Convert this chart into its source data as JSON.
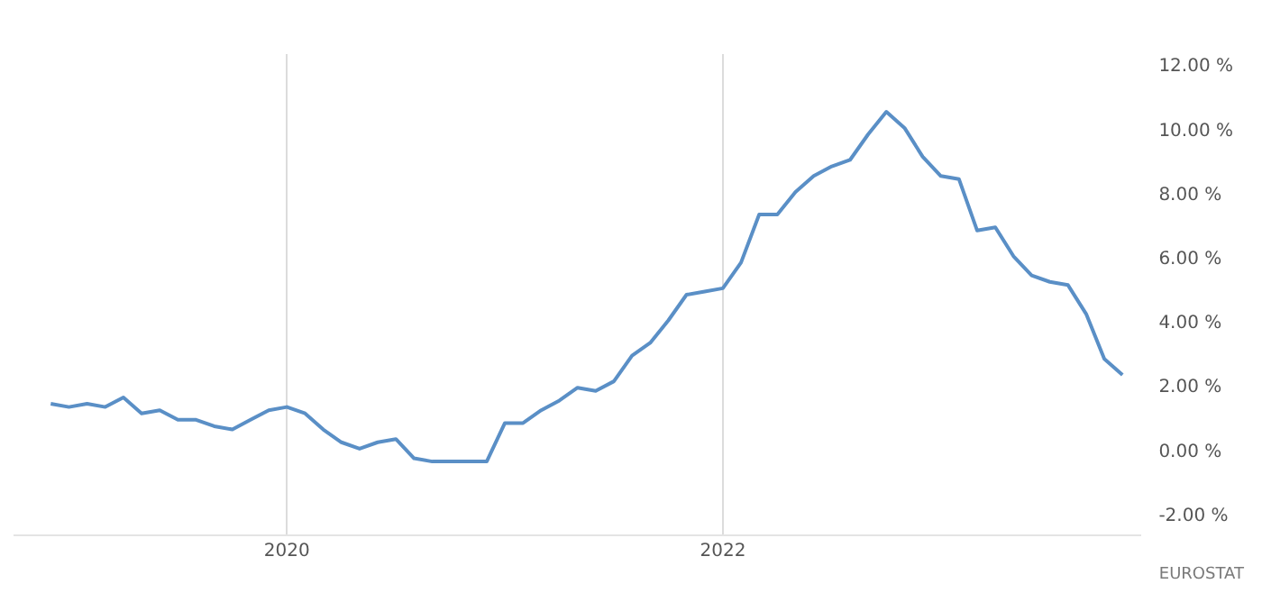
{
  "chart_data": {
    "type": "line",
    "x": [
      "2018-12",
      "2019-01",
      "2019-02",
      "2019-03",
      "2019-04",
      "2019-05",
      "2019-06",
      "2019-07",
      "2019-08",
      "2019-09",
      "2019-10",
      "2019-11",
      "2019-12",
      "2020-01",
      "2020-02",
      "2020-03",
      "2020-04",
      "2020-05",
      "2020-06",
      "2020-07",
      "2020-08",
      "2020-09",
      "2020-10",
      "2020-11",
      "2020-12",
      "2021-01",
      "2021-02",
      "2021-03",
      "2021-04",
      "2021-05",
      "2021-06",
      "2021-07",
      "2021-08",
      "2021-09",
      "2021-10",
      "2021-11",
      "2021-12",
      "2022-01",
      "2022-02",
      "2022-03",
      "2022-04",
      "2022-05",
      "2022-06",
      "2022-07",
      "2022-08",
      "2022-09",
      "2022-10",
      "2022-11",
      "2022-12",
      "2023-01",
      "2023-02",
      "2023-03",
      "2023-04",
      "2023-05",
      "2023-06",
      "2023-07",
      "2023-08",
      "2023-09",
      "2023-10",
      "2023-11"
    ],
    "series": [
      {
        "color": "#5a8fc6",
        "values": [
          1.5,
          1.4,
          1.5,
          1.4,
          1.7,
          1.2,
          1.3,
          1.0,
          1.0,
          0.8,
          0.7,
          1.0,
          1.3,
          1.4,
          1.2,
          0.7,
          0.3,
          0.1,
          0.3,
          0.4,
          -0.2,
          -0.3,
          -0.3,
          -0.3,
          -0.3,
          0.9,
          0.9,
          1.3,
          1.6,
          2.0,
          1.9,
          2.2,
          3.0,
          3.4,
          4.1,
          4.9,
          5.0,
          5.1,
          5.9,
          7.4,
          7.4,
          8.1,
          8.6,
          8.9,
          9.1,
          9.9,
          10.6,
          10.1,
          9.2,
          8.6,
          8.5,
          6.9,
          7.0,
          6.1,
          5.5,
          5.3,
          5.2,
          4.3,
          2.9,
          2.4
        ]
      }
    ],
    "xlim": [
      "2018-10",
      "2023-12"
    ],
    "xticks": [
      "2020",
      "2022"
    ],
    "ylim": [
      -2.6,
      12.4
    ],
    "yticks": [
      {
        "value": -2,
        "label": "-2.00 %"
      },
      {
        "value": 0,
        "label": "0.00 %"
      },
      {
        "value": 2,
        "label": "2.00 %"
      },
      {
        "value": 4,
        "label": "4.00 %"
      },
      {
        "value": 6,
        "label": "6.00 %"
      },
      {
        "value": 8,
        "label": "8.00 %"
      },
      {
        "value": 10,
        "label": "10.00 %"
      },
      {
        "value": 12,
        "label": "12.00 %"
      }
    ],
    "grid": "x",
    "legend": false,
    "marker": "none",
    "line_style": "solid",
    "annotations": [
      "EUROSTAT"
    ]
  }
}
